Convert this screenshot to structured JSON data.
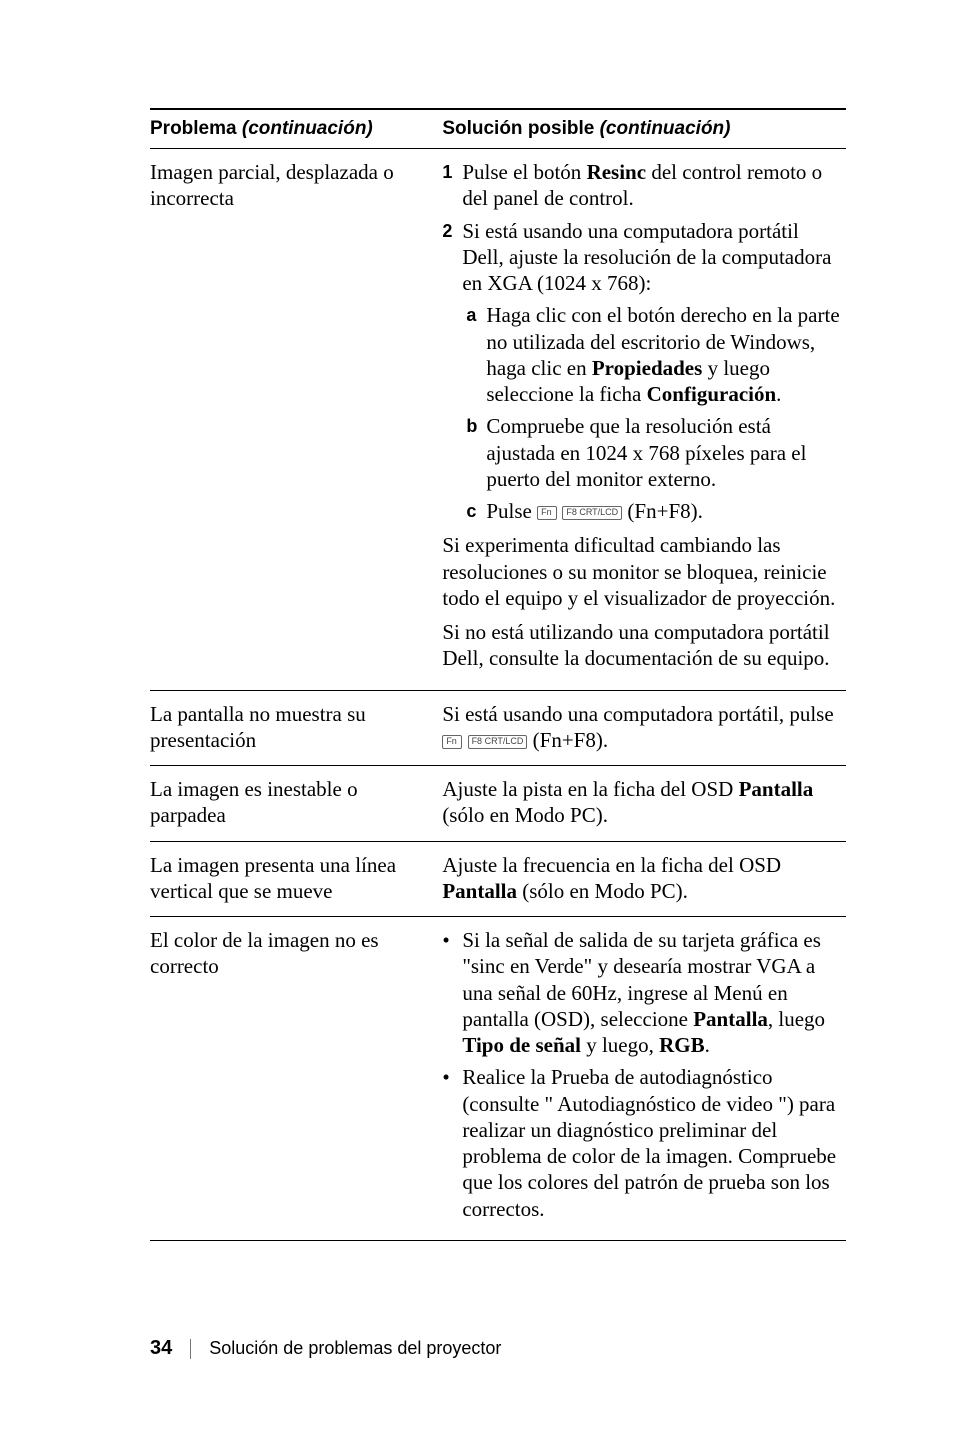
{
  "header": {
    "problem": "Problema",
    "problem_ital": "(continuación)",
    "solution": "Solución posible",
    "solution_ital": "(continuación)"
  },
  "rows": [
    {
      "problem": "Imagen parcial, desplazada o incorrecta",
      "solution": {
        "steps": [
          {
            "marker": "1",
            "pre": "Pulse el botón ",
            "bold": "Resinc",
            "post": " del control remoto o del panel de control."
          },
          {
            "marker": "2",
            "text": "Si está usando una computadora portátil Dell, ajuste la resolución de la computadora en XGA (1024 x 768):"
          }
        ],
        "substeps": [
          {
            "marker": "a",
            "pre": "Haga clic con el botón derecho en la parte no utilizada del escritorio de Windows, haga clic en ",
            "bold1": "Propiedades",
            "mid": " y luego seleccione la ficha ",
            "bold2": "Configuración",
            "post": "."
          },
          {
            "marker": "b",
            "text": "Compruebe que la resolución está ajustada en 1024 x 768 píxeles para el puerto del monitor externo."
          },
          {
            "marker": "c",
            "pre": "Pulse ",
            "key1": "Fn",
            "key2": "F8 CRT/LCD",
            "post": " (Fn+F8)."
          }
        ],
        "paras": [
          "Si experimenta dificultad cambiando las resoluciones o su monitor se bloquea, reinicie todo el equipo y el visualizador de proyección.",
          "Si no está utilizando una computadora portátil Dell, consulte la documentación de su equipo."
        ]
      }
    },
    {
      "problem": "La pantalla no muestra su presentación",
      "solution_line": {
        "pre": "Si está usando una computadora portátil, pulse ",
        "key1": "Fn",
        "key2": "F8 CRT/LCD",
        "post": " (Fn+F8)."
      }
    },
    {
      "problem": "La imagen es inestable o parpadea",
      "solution_simple": {
        "pre": "Ajuste la pista en la ficha del OSD ",
        "bold": "Pantalla",
        "post": " (sólo en Modo PC)."
      }
    },
    {
      "problem": "La imagen presenta una línea vertical que se mueve",
      "solution_simple": {
        "pre": "Ajuste la frecuencia en la ficha del OSD ",
        "bold": "Pantalla",
        "post": " (sólo en Modo PC)."
      }
    },
    {
      "problem": "El color de la imagen no es correcto",
      "bullets": [
        {
          "pre": "Si la señal de salida de su tarjeta gráfica es \"sinc en Verde\" y desearía mostrar VGA a una señal de 60Hz, ingrese al Menú en pantalla (OSD), seleccione ",
          "bold1": "Pantalla",
          "mid1": ", luego ",
          "bold2": "Tipo de señal",
          "mid2": " y luego, ",
          "bold3": "RGB",
          "post": "."
        },
        {
          "text": "Realice la Prueba de autodiagnóstico (consulte \" Autodiagnóstico de video \") para realizar un diagnóstico preliminar del problema de color de la imagen. Compruebe que los colores del patrón de prueba son los correctos."
        }
      ]
    }
  ],
  "footer": {
    "page": "34",
    "section": "Solución de problemas del proyector"
  }
}
